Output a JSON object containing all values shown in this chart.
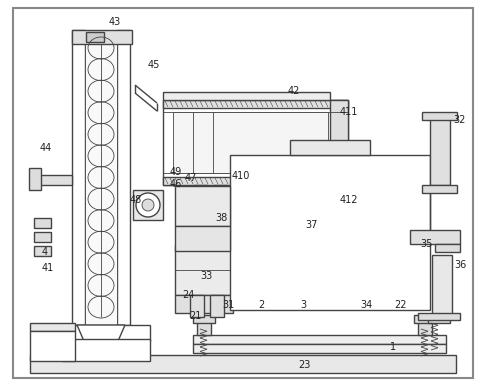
{
  "bg_color": "#ffffff",
  "lc": "#444444",
  "lw": 1.0,
  "tlw": 0.6
}
